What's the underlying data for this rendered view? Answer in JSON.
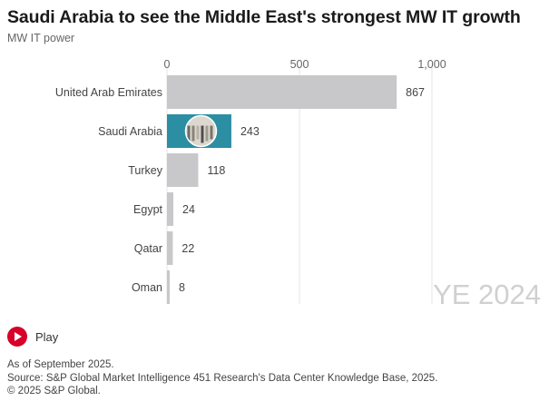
{
  "header": {
    "title": "Saudi Arabia to see the Middle East's strongest MW IT growth",
    "subtitle": "MW IT power"
  },
  "chart_data": {
    "type": "bar",
    "orientation": "horizontal",
    "title": "Saudi Arabia to see the Middle East's strongest MW IT growth",
    "subtitle": "MW IT power",
    "categories": [
      "United Arab Emirates",
      "Saudi Arabia",
      "Turkey",
      "Egypt",
      "Qatar",
      "Oman"
    ],
    "values": [
      867,
      243,
      118,
      24,
      22,
      8
    ],
    "highlight_index": 1,
    "xlim": [
      0,
      1000
    ],
    "ticks": [
      0,
      500,
      1000
    ],
    "tick_labels": [
      "0",
      "500",
      "1,000"
    ],
    "grid": true,
    "frame_label": "YE 2024",
    "bar_color": "#c8c8ca",
    "highlight_color": "#2b8ea3",
    "grid_color": "#e6e6e6"
  },
  "controls": {
    "play_label": "Play",
    "play_color": "#d6002a"
  },
  "footer": {
    "note": "As of September 2025.",
    "source": "Source: S&P Global Market Intelligence 451 Research's Data Center Knowledge Base, 2025.",
    "copyright": "© 2025 S&P Global."
  }
}
